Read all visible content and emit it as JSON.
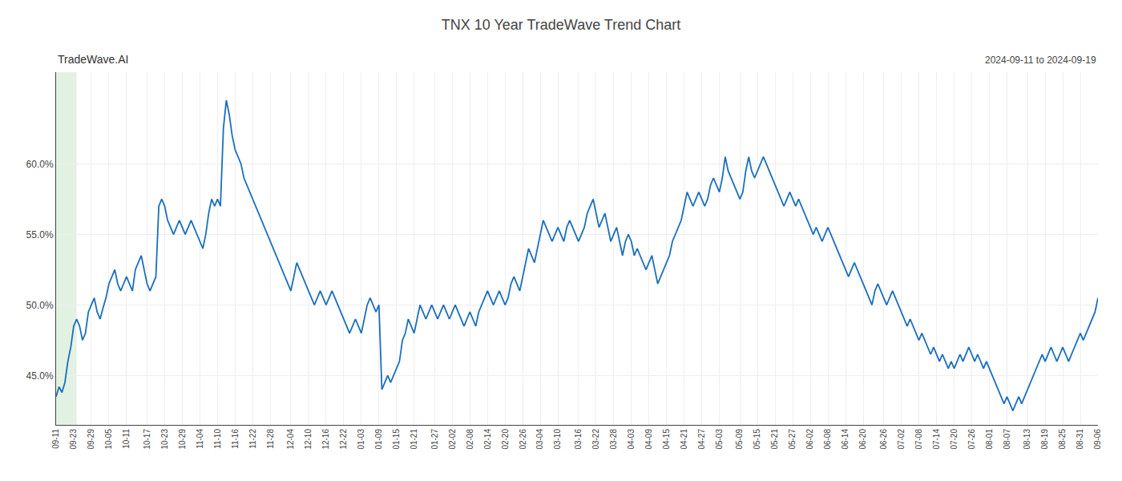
{
  "chart_data": {
    "type": "line",
    "title": "TNX 10 Year TradeWave Trend Chart",
    "subtitle": "2024-09-11 to 2024-09-19",
    "annotations": [
      {
        "text": "TradeWave.AI"
      }
    ],
    "color": "#1a6fbd",
    "grid": true,
    "highlight": {
      "from": 0,
      "to": 7,
      "color": "#d6ecd6"
    },
    "ylim": [
      41.5,
      66.5
    ],
    "yticks": [
      {
        "value": 45.0,
        "label": "45.0%"
      },
      {
        "value": 50.0,
        "label": "50.0%"
      },
      {
        "value": 55.0,
        "label": "55.0%"
      },
      {
        "value": 60.0,
        "label": "60.0%"
      }
    ],
    "categories": [
      "09-11",
      null,
      null,
      null,
      null,
      null,
      "09-23",
      null,
      null,
      null,
      null,
      null,
      "09-29",
      null,
      null,
      null,
      null,
      null,
      "10-05",
      null,
      null,
      null,
      null,
      null,
      "10-11",
      null,
      null,
      null,
      null,
      null,
      null,
      "10-17",
      null,
      null,
      null,
      null,
      null,
      "10-23",
      null,
      null,
      null,
      null,
      null,
      "10-29",
      null,
      null,
      null,
      null,
      null,
      "11-04",
      null,
      null,
      null,
      null,
      null,
      "11-10",
      null,
      null,
      null,
      null,
      null,
      "11-16",
      null,
      null,
      null,
      null,
      null,
      "11-22",
      null,
      null,
      null,
      null,
      null,
      "11-28",
      null,
      null,
      null,
      null,
      null,
      null,
      "12-04",
      null,
      null,
      null,
      null,
      null,
      "12-10",
      null,
      null,
      null,
      null,
      null,
      "12-16",
      null,
      null,
      null,
      null,
      null,
      "12-22",
      null,
      null,
      null,
      null,
      null,
      "01-03",
      null,
      null,
      null,
      null,
      null,
      "01-09",
      null,
      null,
      null,
      null,
      null,
      "01-15",
      null,
      null,
      null,
      null,
      null,
      "01-21",
      null,
      null,
      null,
      null,
      null,
      null,
      "01-27",
      null,
      null,
      null,
      null,
      null,
      "02-02",
      null,
      null,
      null,
      null,
      null,
      "02-08",
      null,
      null,
      null,
      null,
      null,
      "02-14",
      null,
      null,
      null,
      null,
      null,
      "02-20",
      null,
      null,
      null,
      null,
      null,
      "02-26",
      null,
      null,
      null,
      null,
      null,
      "03-04",
      null,
      null,
      null,
      null,
      null,
      "03-10",
      null,
      null,
      null,
      null,
      null,
      null,
      "03-16",
      null,
      null,
      null,
      null,
      null,
      "03-22",
      null,
      null,
      null,
      null,
      null,
      "03-28",
      null,
      null,
      null,
      null,
      null,
      "04-03",
      null,
      null,
      null,
      null,
      null,
      "04-09",
      null,
      null,
      null,
      null,
      null,
      "04-15",
      null,
      null,
      null,
      null,
      null,
      "04-21",
      null,
      null,
      null,
      null,
      null,
      "04-27",
      null,
      null,
      null,
      null,
      null,
      "05-03",
      null,
      null,
      null,
      null,
      null,
      null,
      "05-09",
      null,
      null,
      null,
      null,
      null,
      "05-15",
      null,
      null,
      null,
      null,
      null,
      "05-21",
      null,
      null,
      null,
      null,
      null,
      "05-27",
      null,
      null,
      null,
      null,
      null,
      "06-02",
      null,
      null,
      null,
      null,
      null,
      "06-08",
      null,
      null,
      null,
      null,
      null,
      "06-14",
      null,
      null,
      null,
      null,
      null,
      "06-20",
      null,
      null,
      null,
      null,
      null,
      null,
      "06-26",
      null,
      null,
      null,
      null,
      null,
      "07-02",
      null,
      null,
      null,
      null,
      null,
      "07-08",
      null,
      null,
      null,
      null,
      null,
      "07-14",
      null,
      null,
      null,
      null,
      null,
      "07-20",
      null,
      null,
      null,
      null,
      null,
      "07-26",
      null,
      null,
      null,
      null,
      null,
      "08-01",
      null,
      null,
      null,
      null,
      null,
      "08-07",
      null,
      null,
      null,
      null,
      null,
      null,
      "08-13",
      null,
      null,
      null,
      null,
      null,
      "08-19",
      null,
      null,
      null,
      null,
      null,
      "08-25",
      null,
      null,
      null,
      null,
      null,
      "08-31",
      null,
      null,
      null,
      null,
      null,
      "09-06"
    ],
    "values": [
      43.5,
      44.2,
      43.8,
      44.5,
      46.0,
      47.0,
      48.5,
      49.0,
      48.5,
      47.5,
      48.0,
      49.5,
      50.0,
      50.5,
      49.5,
      49.0,
      49.8,
      50.5,
      51.5,
      52.0,
      52.5,
      51.5,
      51.0,
      51.5,
      52.0,
      51.5,
      51.0,
      52.5,
      53.0,
      53.5,
      52.5,
      51.5,
      51.0,
      51.5,
      52.0,
      57.0,
      57.5,
      57.0,
      56.0,
      55.5,
      55.0,
      55.5,
      56.0,
      55.5,
      55.0,
      55.5,
      56.0,
      55.5,
      55.0,
      54.5,
      54.0,
      55.0,
      56.5,
      57.5,
      57.0,
      57.5,
      57.0,
      62.5,
      64.5,
      63.5,
      62.0,
      61.0,
      60.5,
      60.0,
      59.0,
      58.5,
      58.0,
      57.5,
      57.0,
      56.5,
      56.0,
      55.5,
      55.0,
      54.5,
      54.0,
      53.5,
      53.0,
      52.5,
      52.0,
      51.5,
      51.0,
      52.0,
      53.0,
      52.5,
      52.0,
      51.5,
      51.0,
      50.5,
      50.0,
      50.5,
      51.0,
      50.5,
      50.0,
      50.5,
      51.0,
      50.5,
      50.0,
      49.5,
      49.0,
      48.5,
      48.0,
      48.5,
      49.0,
      48.5,
      48.0,
      49.0,
      50.0,
      50.5,
      50.0,
      49.5,
      50.0,
      44.0,
      44.5,
      45.0,
      44.5,
      45.0,
      45.5,
      46.0,
      47.5,
      48.0,
      49.0,
      48.5,
      48.0,
      49.0,
      50.0,
      49.5,
      49.0,
      49.5,
      50.0,
      49.5,
      49.0,
      49.5,
      50.0,
      49.5,
      49.0,
      49.5,
      50.0,
      49.5,
      49.0,
      48.5,
      49.0,
      49.5,
      49.0,
      48.5,
      49.5,
      50.0,
      50.5,
      51.0,
      50.5,
      50.0,
      50.5,
      51.0,
      50.5,
      50.0,
      50.5,
      51.5,
      52.0,
      51.5,
      51.0,
      52.0,
      53.0,
      54.0,
      53.5,
      53.0,
      54.0,
      55.0,
      56.0,
      55.5,
      55.0,
      54.5,
      55.0,
      55.5,
      55.0,
      54.5,
      55.5,
      56.0,
      55.5,
      55.0,
      54.5,
      55.0,
      55.5,
      56.5,
      57.0,
      57.5,
      56.5,
      55.5,
      56.0,
      56.5,
      55.5,
      54.5,
      55.0,
      55.5,
      54.5,
      53.5,
      54.5,
      55.0,
      54.5,
      53.5,
      54.0,
      53.5,
      53.0,
      52.5,
      53.0,
      53.5,
      52.5,
      51.5,
      52.0,
      52.5,
      53.0,
      53.5,
      54.5,
      55.0,
      55.5,
      56.0,
      57.0,
      58.0,
      57.5,
      57.0,
      57.5,
      58.0,
      57.5,
      57.0,
      57.5,
      58.5,
      59.0,
      58.5,
      58.0,
      59.0,
      60.5,
      59.5,
      59.0,
      58.5,
      58.0,
      57.5,
      58.0,
      59.5,
      60.5,
      59.5,
      59.0,
      59.5,
      60.0,
      60.5,
      60.0,
      59.5,
      59.0,
      58.5,
      58.0,
      57.5,
      57.0,
      57.5,
      58.0,
      57.5,
      57.0,
      57.5,
      57.0,
      56.5,
      56.0,
      55.5,
      55.0,
      55.5,
      55.0,
      54.5,
      55.0,
      55.5,
      55.0,
      54.5,
      54.0,
      53.5,
      53.0,
      52.5,
      52.0,
      52.5,
      53.0,
      52.5,
      52.0,
      51.5,
      51.0,
      50.5,
      50.0,
      51.0,
      51.5,
      51.0,
      50.5,
      50.0,
      50.5,
      51.0,
      50.5,
      50.0,
      49.5,
      49.0,
      48.5,
      49.0,
      48.5,
      48.0,
      47.5,
      48.0,
      47.5,
      47.0,
      46.5,
      47.0,
      46.5,
      46.0,
      46.5,
      46.0,
      45.5,
      46.0,
      45.5,
      46.0,
      46.5,
      46.0,
      46.5,
      47.0,
      46.5,
      46.0,
      46.5,
      46.0,
      45.5,
      46.0,
      45.5,
      45.0,
      44.5,
      44.0,
      43.5,
      43.0,
      43.5,
      43.0,
      42.5,
      43.0,
      43.5,
      43.0,
      43.5,
      44.0,
      44.5,
      45.0,
      45.5,
      46.0,
      46.5,
      46.0,
      46.5,
      47.0,
      46.5,
      46.0,
      46.5,
      47.0,
      46.5,
      46.0,
      46.5,
      47.0,
      47.5,
      48.0,
      47.5,
      48.0,
      48.5,
      49.0,
      49.5,
      50.5
    ]
  }
}
